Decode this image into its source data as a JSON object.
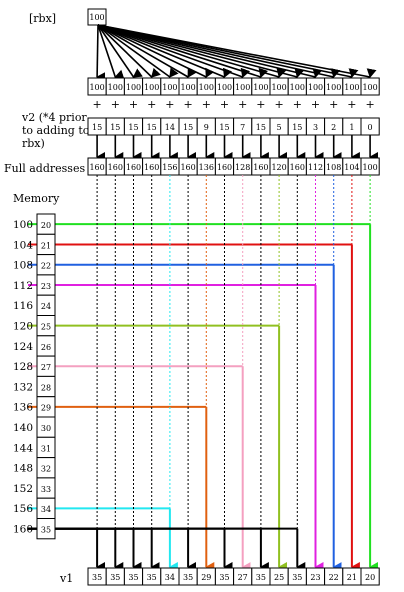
{
  "labels": {
    "rbx": "[rbx]",
    "v2_line1": "v2 (*4 prior",
    "v2_line2": "to adding to",
    "v2_line3": "rbx)",
    "full_addresses": "Full addresses",
    "memory": "Memory",
    "v1": "v1"
  },
  "rbx_value": "100",
  "broadcast": [
    "100",
    "100",
    "100",
    "100",
    "100",
    "100",
    "100",
    "100",
    "100",
    "100",
    "100",
    "100",
    "100",
    "100",
    "100",
    "100"
  ],
  "plus": "+",
  "v2": [
    "15",
    "15",
    "15",
    "15",
    "14",
    "15",
    "9",
    "15",
    "7",
    "15",
    "5",
    "15",
    "3",
    "2",
    "1",
    "0"
  ],
  "full_addresses": [
    "160",
    "160",
    "160",
    "160",
    "156",
    "160",
    "136",
    "160",
    "128",
    "160",
    "120",
    "160",
    "112",
    "108",
    "104",
    "100"
  ],
  "memory": [
    {
      "address": "100",
      "value": "20"
    },
    {
      "address": "104",
      "value": "21"
    },
    {
      "address": "108",
      "value": "22"
    },
    {
      "address": "112",
      "value": "23"
    },
    {
      "address": "116",
      "value": "24"
    },
    {
      "address": "120",
      "value": "25"
    },
    {
      "address": "124",
      "value": "26"
    },
    {
      "address": "128",
      "value": "27"
    },
    {
      "address": "132",
      "value": "28"
    },
    {
      "address": "136",
      "value": "29"
    },
    {
      "address": "140",
      "value": "30"
    },
    {
      "address": "144",
      "value": "31"
    },
    {
      "address": "148",
      "value": "32"
    },
    {
      "address": "152",
      "value": "33"
    },
    {
      "address": "156",
      "value": "34"
    },
    {
      "address": "160",
      "value": "35"
    }
  ],
  "v1": [
    "35",
    "35",
    "35",
    "35",
    "34",
    "35",
    "29",
    "35",
    "27",
    "35",
    "25",
    "35",
    "23",
    "22",
    "21",
    "20"
  ],
  "gather_colors": {
    "0": "#000000",
    "1": "#000000",
    "2": "#000000",
    "3": "#000000",
    "4": "#22e8f0",
    "5": "#000000",
    "6": "#e06010",
    "7": "#000000",
    "8": "#f4a0c0",
    "9": "#000000",
    "10": "#90c020",
    "11": "#000000",
    "12": "#e020e0",
    "13": "#2060e0",
    "14": "#e01010",
    "15": "#20e020"
  }
}
